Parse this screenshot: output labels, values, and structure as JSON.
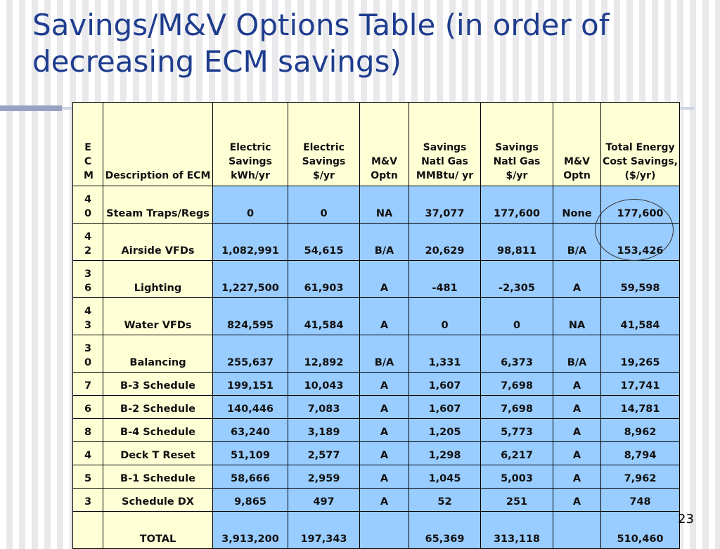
{
  "slide": {
    "title": "Savings/M&V Options Table (in order of decreasing ECM savings)",
    "page_number": "23"
  },
  "table": {
    "headers": [
      "E\nC\nM",
      "Description of ECM",
      "Electric Savings kWh/yr",
      "Electric Savings $/yr",
      "M&V Optn",
      "Savings Natl Gas MMBtu/ yr",
      "Savings Natl Gas $/yr",
      "M&V Optn",
      "Total Energy Cost Savings, ($/yr)"
    ],
    "rows": [
      [
        "40",
        "Steam Traps/Regs",
        "0",
        "0",
        "NA",
        "37,077",
        "177,600",
        "None",
        "177,600"
      ],
      [
        "42",
        "Airside VFDs",
        "1,082,991",
        "54,615",
        "B/A",
        "20,629",
        "98,811",
        "B/A",
        "153,426"
      ],
      [
        "36",
        "Lighting",
        "1,227,500",
        "61,903",
        "A",
        "-481",
        "-2,305",
        "A",
        "59,598"
      ],
      [
        "43",
        "Water VFDs",
        "824,595",
        "41,584",
        "A",
        "0",
        "0",
        "NA",
        "41,584"
      ],
      [
        "30",
        "Balancing",
        "255,637",
        "12,892",
        "B/A",
        "1,331",
        "6,373",
        "B/A",
        "19,265"
      ],
      [
        "7",
        "B-3 Schedule",
        "199,151",
        "10,043",
        "A",
        "1,607",
        "7,698",
        "A",
        "17,741"
      ],
      [
        "6",
        "B-2 Schedule",
        "140,446",
        "7,083",
        "A",
        "1,607",
        "7,698",
        "A",
        "14,781"
      ],
      [
        "8",
        "B-4 Schedule",
        "63,240",
        "3,189",
        "A",
        "1,205",
        "5,773",
        "A",
        "8,962"
      ],
      [
        "4",
        "Deck T Reset",
        "51,109",
        "2,577",
        "A",
        "1,298",
        "6,217",
        "A",
        "8,794"
      ],
      [
        "5",
        "B-1 Schedule",
        "58,666",
        "2,959",
        "A",
        "1,045",
        "5,003",
        "A",
        "7,962"
      ],
      [
        "3",
        "Schedule DX",
        "9,865",
        "497",
        "A",
        "52",
        "251",
        "A",
        "748"
      ],
      [
        "",
        "TOTAL",
        "3,913,200",
        "197,343",
        "",
        "65,369",
        "313,118",
        "",
        "510,460"
      ]
    ]
  },
  "colors": {
    "title": "#1f3d8f",
    "header_bg": "#ffffd6",
    "cell_bg": "#99ccff"
  }
}
